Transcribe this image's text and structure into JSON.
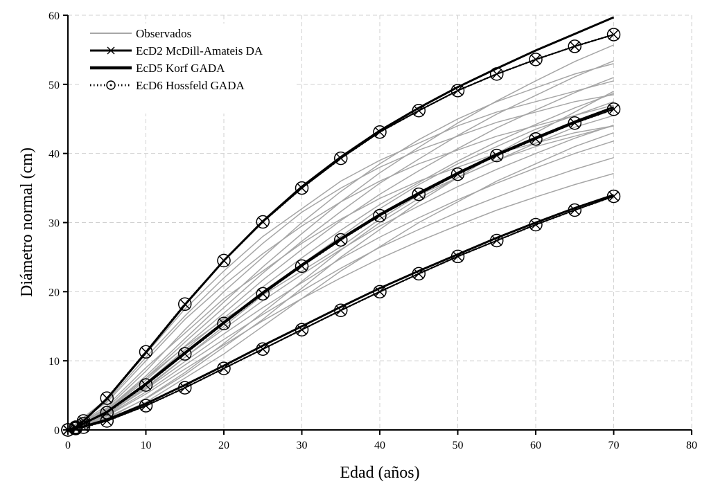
{
  "chart_data": {
    "type": "line",
    "xlabel": "Edad (años)",
    "ylabel": "Diámetro normal (cm)",
    "xlim": [
      0,
      80
    ],
    "ylim": [
      0,
      60
    ],
    "xticks": [
      0,
      10,
      20,
      30,
      40,
      50,
      60,
      70,
      80
    ],
    "yticks": [
      0,
      10,
      20,
      30,
      40,
      50,
      60
    ],
    "grid": true,
    "legend_position": "top-left",
    "colors": {
      "observed": "#a6a6a6",
      "models": "#000000",
      "grid": "#d0d0d0"
    },
    "observed": {
      "name": "Observados",
      "x": [
        0,
        5,
        10,
        15,
        20,
        25,
        30,
        35,
        40,
        45,
        50,
        55,
        60,
        65,
        70
      ],
      "series": [
        [
          0,
          2,
          5.2,
          8.8,
          12.3,
          15.8,
          19,
          22,
          24.8,
          27.3,
          29.6,
          31.8,
          33.7,
          35.5,
          37.1
        ],
        [
          0,
          2.1,
          5.5,
          9.4,
          13.1,
          16.7,
          20.1,
          23.4,
          26.4,
          29,
          31.5,
          33.7,
          35.8,
          37.7,
          39.4
        ],
        [
          0,
          2.3,
          5.9,
          9.9,
          13.9,
          17.7,
          21.3,
          24.8,
          27.9,
          30.7,
          33.3,
          35.7,
          37.9,
          40,
          41.8
        ],
        [
          0,
          2.4,
          6.2,
          10.5,
          14.6,
          18.7,
          22.5,
          26.1,
          29.5,
          32.4,
          35.2,
          37.7,
          40,
          42.2,
          44.1
        ],
        [
          0,
          3,
          7.5,
          12,
          16,
          19.5,
          23,
          26.5,
          30.5,
          34,
          36.5,
          39,
          41.5,
          43.8,
          45.5
        ],
        [
          0,
          2.6,
          6.8,
          11.6,
          16.2,
          20.7,
          24.9,
          28.9,
          32.6,
          35.8,
          38.9,
          41.7,
          44.2,
          46.6,
          48.7
        ],
        [
          0,
          2.8,
          7.2,
          12.1,
          16.9,
          21.7,
          26.1,
          30.3,
          34.1,
          37.5,
          40.7,
          43.7,
          46.3,
          48.8,
          51
        ],
        [
          0,
          2.9,
          7.5,
          12.7,
          17.7,
          22.7,
          27.3,
          31.6,
          35.7,
          39.2,
          42.6,
          45.7,
          48.4,
          51.1,
          53.4
        ],
        [
          0,
          3,
          7.8,
          13.2,
          18.5,
          23.6,
          28.4,
          33,
          37.2,
          40.9,
          44.4,
          47.6,
          50.5,
          53.3,
          55.7
        ],
        [
          0,
          4,
          10,
          16,
          21,
          25.5,
          29.5,
          33,
          36,
          38.5,
          40.5,
          42.5,
          44,
          45.5,
          47
        ],
        [
          0,
          3.5,
          9,
          14,
          19,
          23,
          27,
          30.5,
          33.5,
          36,
          38,
          40,
          41.5,
          43,
          44
        ],
        [
          0,
          4.5,
          11,
          17.5,
          23,
          28,
          32,
          36,
          39,
          41.5,
          44,
          46,
          47.5,
          49,
          50.5
        ],
        [
          0,
          1.5,
          4,
          7.5,
          11,
          15,
          19,
          23,
          26.5,
          30,
          33,
          36,
          38.5,
          41,
          43
        ],
        [
          0,
          1.8,
          4.5,
          8,
          12,
          16,
          20.5,
          25,
          29,
          33,
          36.5,
          40,
          43,
          46,
          49
        ],
        [
          0,
          2.2,
          6,
          10.5,
          15,
          19.5,
          24,
          28,
          32,
          35.5,
          38.5,
          41,
          43.5,
          45.5,
          47.5
        ],
        [
          0,
          3.2,
          8.5,
          14.5,
          20,
          25,
          30,
          34.5,
          38.5,
          42,
          45,
          47.5,
          49.5,
          51.5,
          53
        ],
        [
          0,
          4.2,
          10.5,
          16.5,
          22,
          27,
          31.5,
          35,
          38,
          40.5,
          42.5,
          44.5,
          46,
          47.5,
          48.5
        ],
        [
          0,
          1.6,
          4.6,
          8.3,
          12.5,
          17,
          21.5,
          26,
          30,
          33.5,
          36.5,
          39,
          41,
          42.5,
          44
        ]
      ]
    },
    "models": [
      {
        "name": "EcD2 McDill-Amateis DA",
        "style": "line-x-marker",
        "x": [
          0,
          1,
          2,
          5,
          10,
          15,
          20,
          25,
          30,
          35,
          40,
          45,
          50,
          55,
          60,
          65,
          70
        ],
        "series": [
          [
            0,
            0.4,
            1.3,
            4.6,
            11.3,
            18.2,
            24.5,
            30.1,
            35,
            39.3,
            43.1,
            46.2,
            49.1,
            51.5,
            53.6,
            55.5,
            57.2
          ],
          [
            0,
            0.3,
            0.9,
            2.5,
            6.5,
            11,
            15.4,
            19.7,
            23.7,
            27.5,
            31,
            34.1,
            37,
            39.7,
            42.1,
            44.4,
            46.4
          ],
          [
            0,
            0.2,
            0.4,
            1.3,
            3.5,
            6.1,
            8.9,
            11.7,
            14.5,
            17.3,
            20,
            22.6,
            25.1,
            27.4,
            29.7,
            31.8,
            33.8
          ]
        ]
      },
      {
        "name": "EcD5 Korf GADA",
        "style": "thick-line",
        "x": [
          0,
          1,
          2,
          5,
          10,
          15,
          20,
          25,
          30,
          35,
          40,
          45,
          50,
          55,
          60,
          65,
          70
        ],
        "series": [
          [
            0,
            0.4,
            1.3,
            4.5,
            11.2,
            18.1,
            24.5,
            30.2,
            35.2,
            39.5,
            43.3,
            46.6,
            49.6,
            52.3,
            54.9,
            57.3,
            59.7
          ],
          [
            0,
            0.3,
            0.9,
            2.6,
            6.7,
            11.2,
            15.6,
            19.9,
            23.9,
            27.7,
            31.2,
            34.3,
            37.2,
            39.9,
            42.3,
            44.6,
            46.7
          ],
          [
            0,
            0.2,
            0.5,
            1.5,
            3.8,
            6.5,
            9.3,
            12.2,
            15,
            17.8,
            20.5,
            23,
            25.4,
            27.8,
            30,
            32.1,
            34
          ]
        ]
      },
      {
        "name": "EcD6 Hossfeld GADA",
        "style": "dotted-circle-marker",
        "x": [
          0,
          1,
          2,
          5,
          10,
          15,
          20,
          25,
          30,
          35,
          40,
          45,
          50,
          55,
          60,
          65,
          70
        ],
        "series": [
          [
            0,
            0.4,
            1.3,
            4.6,
            11.3,
            18.2,
            24.5,
            30.1,
            35,
            39.3,
            43.1,
            46.2,
            49.1,
            51.5,
            53.6,
            55.5,
            57.2
          ],
          [
            0,
            0.3,
            0.9,
            2.5,
            6.5,
            11,
            15.4,
            19.7,
            23.7,
            27.5,
            31,
            34.1,
            37,
            39.7,
            42.1,
            44.4,
            46.4
          ],
          [
            0,
            0.2,
            0.4,
            1.3,
            3.5,
            6.1,
            8.9,
            11.7,
            14.5,
            17.3,
            20,
            22.6,
            25.1,
            27.4,
            29.7,
            31.8,
            33.8
          ]
        ]
      }
    ]
  }
}
